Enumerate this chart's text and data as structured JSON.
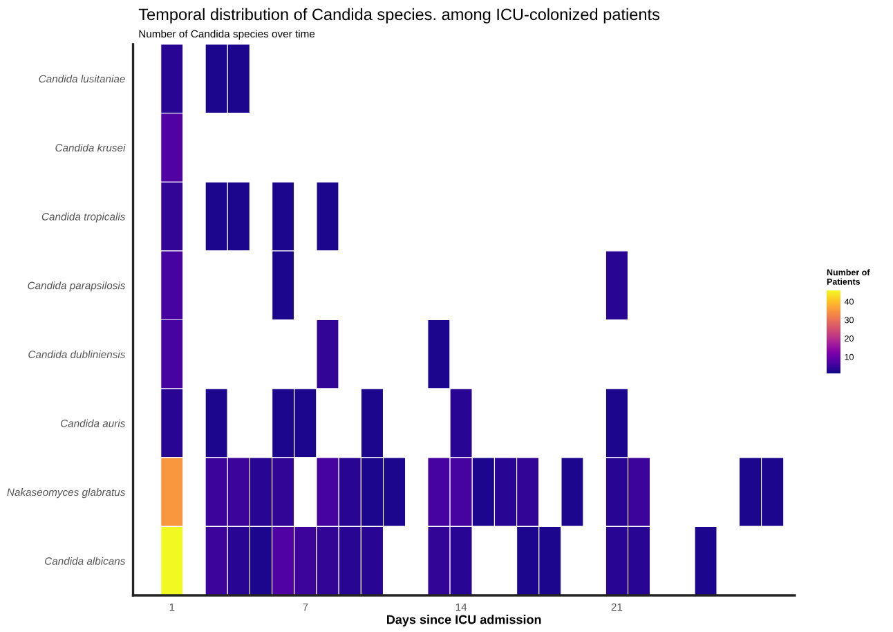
{
  "chart_data": {
    "type": "heatmap",
    "title": "Temporal distribution of Candida species. among ICU-colonized patients",
    "subtitle": "Number of Candida species over time",
    "xlabel": "Days since ICU admission",
    "clabel": "Number of\nPatients",
    "categories": [
      "1",
      null,
      null,
      null,
      null,
      null,
      "7",
      null,
      null,
      null,
      null,
      null,
      null,
      "14",
      null,
      null,
      null,
      null,
      null,
      null,
      "21",
      null,
      null,
      null,
      null,
      null,
      null,
      null
    ],
    "y_categories": [
      "Candida lusitaniae",
      "Candida krusei",
      "Candida tropicalis",
      "Candida parapsilosis",
      "Candida dubliniensis",
      "Candida auris",
      "Nakaseomyces glabratus",
      "Candida albicans"
    ],
    "cells": [
      [
        3,
        null,
        2,
        2,
        null,
        null,
        null,
        null,
        null,
        null,
        null,
        null,
        null,
        null,
        null,
        null,
        null,
        null,
        null,
        null,
        null,
        null,
        null,
        null,
        null,
        null,
        null,
        null
      ],
      [
        7,
        null,
        null,
        null,
        null,
        null,
        null,
        null,
        null,
        null,
        null,
        null,
        null,
        null,
        null,
        null,
        null,
        null,
        null,
        null,
        null,
        null,
        null,
        null,
        null,
        null,
        null,
        null
      ],
      [
        4,
        null,
        2,
        2,
        null,
        2,
        null,
        2,
        null,
        null,
        null,
        null,
        null,
        null,
        null,
        null,
        null,
        null,
        null,
        null,
        null,
        null,
        null,
        null,
        null,
        null,
        null,
        null
      ],
      [
        6,
        null,
        null,
        null,
        null,
        2,
        null,
        null,
        null,
        null,
        null,
        null,
        null,
        null,
        null,
        null,
        null,
        null,
        null,
        null,
        3,
        null,
        null,
        null,
        null,
        null,
        null,
        null
      ],
      [
        6,
        null,
        null,
        null,
        null,
        null,
        null,
        4,
        null,
        null,
        null,
        null,
        2,
        null,
        null,
        null,
        null,
        null,
        null,
        null,
        null,
        null,
        null,
        null,
        null,
        null,
        null,
        null
      ],
      [
        3,
        null,
        2,
        null,
        null,
        2,
        2,
        null,
        null,
        2,
        null,
        null,
        null,
        3,
        null,
        null,
        null,
        null,
        null,
        null,
        2,
        null,
        null,
        null,
        null,
        null,
        null,
        null
      ],
      [
        35,
        null,
        5,
        5,
        3,
        4,
        null,
        6,
        3,
        2,
        2,
        null,
        6,
        6,
        2,
        3,
        4,
        null,
        2,
        null,
        3,
        5,
        null,
        null,
        null,
        null,
        2,
        2
      ],
      [
        46,
        null,
        5,
        3,
        2,
        7,
        5,
        4,
        3,
        3,
        null,
        null,
        4,
        3,
        null,
        null,
        2,
        2,
        null,
        null,
        3,
        3,
        null,
        null,
        2,
        null,
        null,
        null
      ]
    ],
    "clim": [
      1,
      46
    ],
    "cticks": [
      10,
      20,
      30,
      40
    ]
  }
}
